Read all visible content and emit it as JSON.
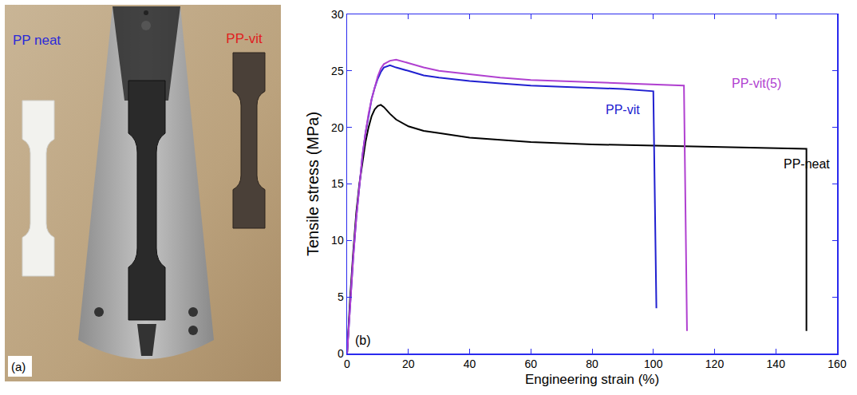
{
  "photo": {
    "panel_label": "(a)",
    "specimen_labels": [
      {
        "text": "PP neat",
        "color": "#2a2ad8"
      },
      {
        "text": "PP-vit",
        "color": "#e02020"
      }
    ]
  },
  "chart_data": {
    "type": "line",
    "panel_label": "(b)",
    "x_label": "Engineering strain (%)",
    "y_label": "Tensile stress (MPa)",
    "xlim": [
      0,
      160
    ],
    "xticks": [
      0,
      20,
      40,
      60,
      80,
      100,
      120,
      140,
      160
    ],
    "ylim": [
      0,
      30
    ],
    "yticks": [
      0,
      5,
      10,
      15,
      20,
      25,
      30
    ],
    "series": [
      {
        "name": "PP-neat",
        "color": "#000000",
        "x": [
          0,
          1,
          2,
          3,
          4,
          5,
          6,
          7,
          8,
          9,
          10,
          11,
          12,
          14,
          16,
          20,
          25,
          30,
          40,
          50,
          60,
          80,
          100,
          120,
          140,
          150,
          150
        ],
        "values": [
          0,
          5,
          9,
          12.5,
          15,
          17,
          18.7,
          20,
          21,
          21.6,
          21.9,
          22,
          21.8,
          21.2,
          20.7,
          20.1,
          19.7,
          19.5,
          19.1,
          18.9,
          18.7,
          18.5,
          18.4,
          18.3,
          18.2,
          18.1,
          2
        ],
        "label": {
          "x": 142,
          "y": 16.8
        }
      },
      {
        "name": "PP-vit",
        "color": "#2020d0",
        "x": [
          0,
          1,
          2,
          3,
          4,
          5,
          6,
          7,
          8,
          9,
          10,
          11,
          12,
          14,
          16,
          20,
          25,
          30,
          40,
          50,
          60,
          70,
          80,
          90,
          100,
          101
        ],
        "values": [
          0,
          4.5,
          8.5,
          12,
          15,
          17.5,
          19.5,
          21,
          22.5,
          23.5,
          24.3,
          24.9,
          25.3,
          25.5,
          25.3,
          25,
          24.6,
          24.4,
          24.1,
          23.9,
          23.7,
          23.6,
          23.5,
          23.4,
          23.2,
          4
        ],
        "label": {
          "x": 84,
          "y": 21.6
        }
      },
      {
        "name": "PP-vit(5)",
        "color": "#b040d0",
        "x": [
          0,
          1,
          2,
          3,
          4,
          5,
          6,
          7,
          8,
          9,
          10,
          11,
          12,
          14,
          16,
          20,
          25,
          30,
          40,
          50,
          60,
          70,
          80,
          90,
          100,
          110,
          111
        ],
        "values": [
          0,
          4.5,
          8.5,
          12,
          15,
          17.5,
          19.5,
          21.2,
          22.5,
          23.6,
          24.5,
          25.2,
          25.6,
          25.9,
          26,
          25.7,
          25.3,
          25,
          24.7,
          24.4,
          24.2,
          24.1,
          24,
          23.9,
          23.8,
          23.7,
          2
        ],
        "label": {
          "x": 125,
          "y": 23.9
        }
      }
    ]
  }
}
